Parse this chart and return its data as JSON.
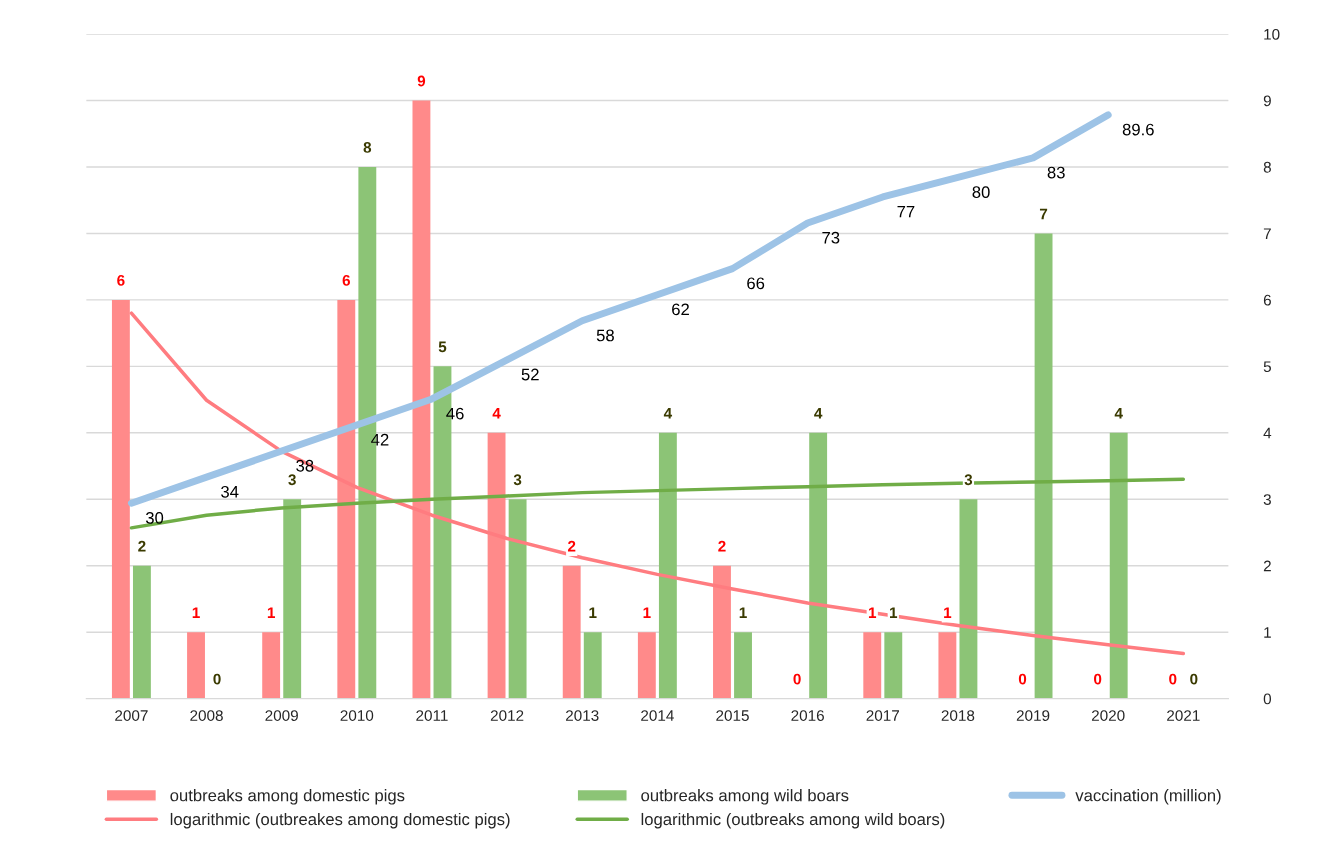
{
  "chart_data": {
    "type": "bar",
    "categories": [
      "2007",
      "2008",
      "2009",
      "2010",
      "2011",
      "2012",
      "2013",
      "2014",
      "2015",
      "2016",
      "2017",
      "2018",
      "2019",
      "2020",
      "2021"
    ],
    "series": [
      {
        "name": "outbreaks among domestic pigs",
        "color": "#ff8a8a",
        "values": [
          6,
          1,
          1,
          6,
          9,
          4,
          2,
          1,
          2,
          0,
          1,
          1,
          0,
          0,
          0
        ],
        "value_labels": [
          "6",
          "1",
          "1",
          "6",
          "9",
          "4",
          "2",
          "1",
          "2",
          "0",
          "1",
          "1",
          "0",
          "0",
          "0"
        ]
      },
      {
        "name": "outbreaks among wild boars",
        "color": "#8cc476",
        "values": [
          2,
          0,
          3,
          8,
          5,
          3,
          1,
          4,
          1,
          4,
          1,
          3,
          7,
          4,
          0
        ],
        "value_labels": [
          "2",
          "0",
          "3",
          "8",
          "5",
          "3",
          "1",
          "4",
          "1",
          "4",
          "1",
          "3",
          "7",
          "4",
          "0"
        ]
      },
      {
        "name": "vaccination (million)",
        "type": "line",
        "axis": "y2",
        "color": "#9dc3e6",
        "values": [
          30,
          34,
          38,
          42,
          46,
          52,
          58,
          62,
          66,
          73,
          77,
          80,
          83,
          89.6,
          null
        ],
        "value_labels": [
          "30",
          "34",
          "38",
          "42",
          "46",
          "52",
          "58",
          "62",
          "66",
          "73",
          "77",
          "80",
          "83",
          "89.6",
          null
        ]
      },
      {
        "name": "logarithmic (outbreakes among domestic pigs)",
        "type": "line",
        "color": "#ff7c80",
        "values": [
          5.8,
          4.49,
          3.72,
          3.18,
          2.76,
          2.41,
          2.12,
          1.87,
          1.65,
          1.44,
          1.27,
          1.1,
          0.95,
          0.81,
          0.68
        ]
      },
      {
        "name": "logarithmic (outbreaks among wild boars)",
        "type": "line",
        "color": "#70ad47",
        "values": [
          2.57,
          2.76,
          2.87,
          2.94,
          3.0,
          3.05,
          3.1,
          3.13,
          3.16,
          3.19,
          3.22,
          3.24,
          3.26,
          3.28,
          3.3
        ]
      }
    ],
    "ylim": [
      0,
      10
    ],
    "yticks": [
      0,
      1,
      2,
      3,
      4,
      5,
      6,
      7,
      8,
      9,
      10
    ],
    "y2lim": [
      0,
      102
    ],
    "tick_labels": [
      "x",
      "y"
    ],
    "grid": "y",
    "legend": "bottom",
    "marker": "none",
    "line_style": "solid"
  }
}
